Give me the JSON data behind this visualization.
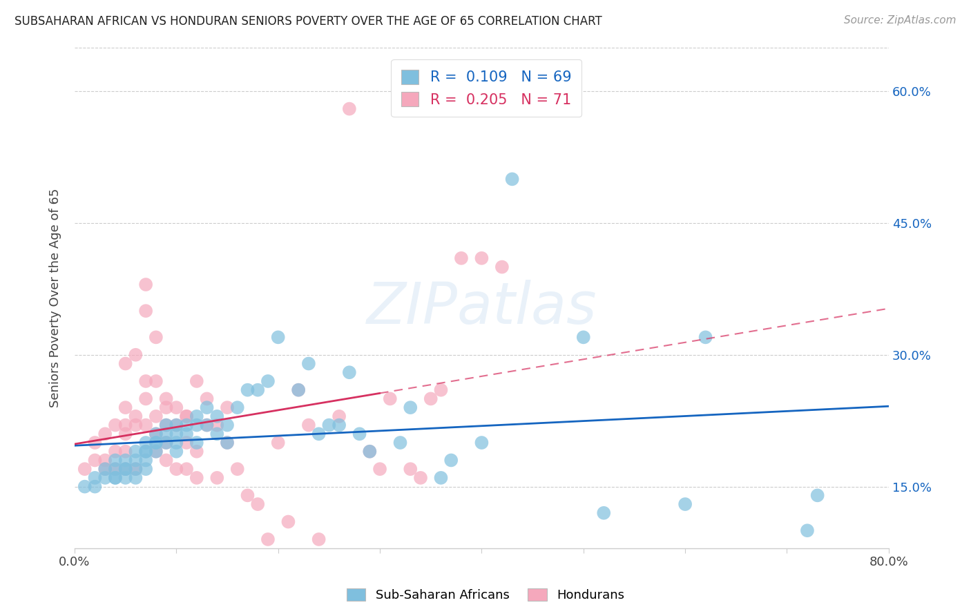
{
  "title": "SUBSAHARAN AFRICAN VS HONDURAN SENIORS POVERTY OVER THE AGE OF 65 CORRELATION CHART",
  "source": "Source: ZipAtlas.com",
  "ylabel": "Seniors Poverty Over the Age of 65",
  "xlim": [
    0.0,
    0.8
  ],
  "ylim": [
    0.08,
    0.65
  ],
  "yticks": [
    0.15,
    0.3,
    0.45,
    0.6
  ],
  "ytick_labels": [
    "15.0%",
    "30.0%",
    "45.0%",
    "60.0%"
  ],
  "xtick_positions": [
    0.0,
    0.1,
    0.2,
    0.3,
    0.4,
    0.5,
    0.6,
    0.7,
    0.8
  ],
  "blue_color": "#7fbfde",
  "pink_color": "#f5a8bc",
  "blue_line_color": "#1565c0",
  "pink_line_color": "#d63060",
  "legend_label_blue": "Sub-Saharan Africans",
  "legend_label_pink": "Hondurans",
  "watermark": "ZIPatlas",
  "blue_scatter_x": [
    0.01,
    0.02,
    0.02,
    0.03,
    0.03,
    0.04,
    0.04,
    0.04,
    0.04,
    0.05,
    0.05,
    0.05,
    0.05,
    0.06,
    0.06,
    0.06,
    0.06,
    0.07,
    0.07,
    0.07,
    0.07,
    0.07,
    0.08,
    0.08,
    0.08,
    0.08,
    0.09,
    0.09,
    0.09,
    0.1,
    0.1,
    0.1,
    0.1,
    0.11,
    0.11,
    0.12,
    0.12,
    0.12,
    0.13,
    0.13,
    0.14,
    0.14,
    0.15,
    0.15,
    0.16,
    0.17,
    0.18,
    0.19,
    0.2,
    0.22,
    0.23,
    0.24,
    0.25,
    0.26,
    0.27,
    0.28,
    0.29,
    0.32,
    0.33,
    0.36,
    0.37,
    0.4,
    0.43,
    0.5,
    0.52,
    0.6,
    0.62,
    0.72,
    0.73
  ],
  "blue_scatter_y": [
    0.15,
    0.15,
    0.16,
    0.16,
    0.17,
    0.16,
    0.17,
    0.18,
    0.16,
    0.17,
    0.17,
    0.18,
    0.16,
    0.18,
    0.19,
    0.17,
    0.16,
    0.19,
    0.19,
    0.2,
    0.18,
    0.17,
    0.2,
    0.21,
    0.2,
    0.19,
    0.21,
    0.22,
    0.2,
    0.2,
    0.21,
    0.19,
    0.22,
    0.22,
    0.21,
    0.23,
    0.22,
    0.2,
    0.24,
    0.22,
    0.23,
    0.21,
    0.22,
    0.2,
    0.24,
    0.26,
    0.26,
    0.27,
    0.32,
    0.26,
    0.29,
    0.21,
    0.22,
    0.22,
    0.28,
    0.21,
    0.19,
    0.2,
    0.24,
    0.16,
    0.18,
    0.2,
    0.5,
    0.32,
    0.12,
    0.13,
    0.32,
    0.1,
    0.14
  ],
  "pink_scatter_x": [
    0.01,
    0.02,
    0.02,
    0.03,
    0.03,
    0.03,
    0.04,
    0.04,
    0.04,
    0.05,
    0.05,
    0.05,
    0.05,
    0.05,
    0.05,
    0.06,
    0.06,
    0.06,
    0.06,
    0.07,
    0.07,
    0.07,
    0.07,
    0.07,
    0.08,
    0.08,
    0.08,
    0.08,
    0.08,
    0.09,
    0.09,
    0.09,
    0.09,
    0.09,
    0.1,
    0.1,
    0.1,
    0.11,
    0.11,
    0.11,
    0.11,
    0.12,
    0.12,
    0.12,
    0.13,
    0.13,
    0.14,
    0.14,
    0.15,
    0.15,
    0.16,
    0.17,
    0.18,
    0.19,
    0.2,
    0.21,
    0.22,
    0.23,
    0.24,
    0.26,
    0.27,
    0.29,
    0.3,
    0.31,
    0.33,
    0.34,
    0.35,
    0.36,
    0.38,
    0.4,
    0.42
  ],
  "pink_scatter_y": [
    0.17,
    0.18,
    0.2,
    0.17,
    0.21,
    0.18,
    0.19,
    0.22,
    0.17,
    0.21,
    0.24,
    0.29,
    0.19,
    0.22,
    0.17,
    0.23,
    0.3,
    0.22,
    0.17,
    0.27,
    0.35,
    0.38,
    0.25,
    0.22,
    0.27,
    0.32,
    0.23,
    0.21,
    0.19,
    0.25,
    0.24,
    0.22,
    0.2,
    0.18,
    0.22,
    0.24,
    0.17,
    0.23,
    0.23,
    0.2,
    0.17,
    0.19,
    0.27,
    0.16,
    0.25,
    0.22,
    0.22,
    0.16,
    0.24,
    0.2,
    0.17,
    0.14,
    0.13,
    0.09,
    0.2,
    0.11,
    0.26,
    0.22,
    0.09,
    0.23,
    0.58,
    0.19,
    0.17,
    0.25,
    0.17,
    0.16,
    0.25,
    0.26,
    0.41,
    0.41,
    0.4
  ]
}
